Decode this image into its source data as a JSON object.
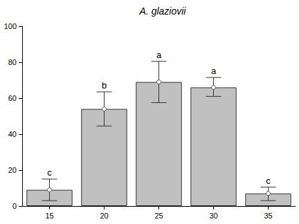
{
  "chart_data": {
    "type": "bar",
    "title": "A. glaziovii",
    "categories": [
      "15",
      "20",
      "25",
      "30",
      "35"
    ],
    "values": [
      9,
      54,
      69,
      66,
      7
    ],
    "error_low": [
      3,
      44.5,
      57.5,
      61,
      3
    ],
    "error_high": [
      15,
      63.5,
      80.5,
      71.5,
      10.5
    ],
    "annotations": [
      "c",
      "b",
      "a",
      "a",
      "c"
    ],
    "color": "#c0c0c0",
    "marker": "circle",
    "ylim": [
      0,
      100
    ],
    "yticks": [
      0,
      20,
      40,
      60,
      80,
      100
    ],
    "grid": false
  }
}
